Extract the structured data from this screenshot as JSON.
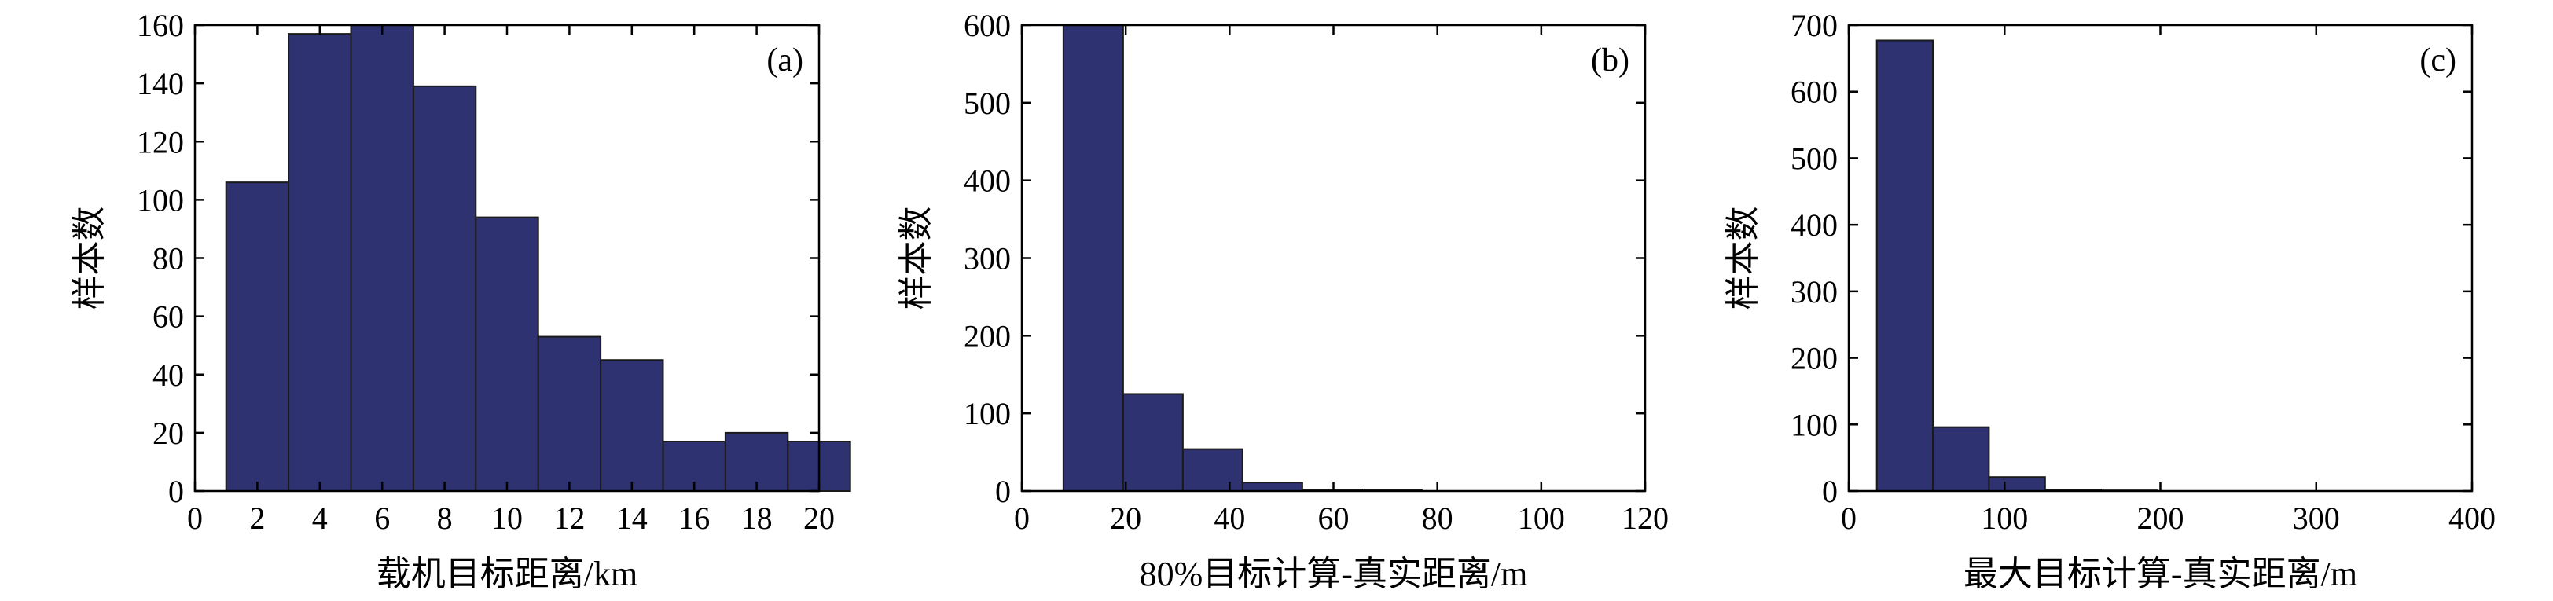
{
  "colors": {
    "bar_fill": "#2e3270",
    "bar_edge": "#1a1a1a",
    "frame": "#000000"
  },
  "chart_data": [
    {
      "type": "bar",
      "panel_label": "(a)",
      "xlabel": "载机目标距离/km",
      "ylabel": "样本数",
      "xlim": [
        0,
        20
      ],
      "ylim": [
        0,
        160
      ],
      "xticks": [
        0,
        2,
        4,
        6,
        8,
        10,
        12,
        14,
        16,
        18,
        20
      ],
      "yticks": [
        0,
        20,
        40,
        60,
        80,
        100,
        120,
        140,
        160
      ],
      "bin_edges": [
        1,
        3,
        5,
        7,
        9,
        11,
        13,
        15,
        17,
        19,
        21
      ],
      "values": [
        106,
        157,
        160,
        139,
        94,
        53,
        45,
        17,
        20,
        17
      ]
    },
    {
      "type": "bar",
      "panel_label": "(b)",
      "xlabel": "80%目标计算-真实距离/m",
      "ylabel": "样本数",
      "xlim": [
        0,
        120
      ],
      "ylim": [
        0,
        600
      ],
      "xticks": [
        0,
        20,
        40,
        60,
        80,
        100,
        120
      ],
      "yticks": [
        0,
        100,
        200,
        300,
        400,
        500,
        600
      ],
      "bin_edges": [
        8,
        19.5,
        31,
        42.5,
        54,
        65.5,
        77
      ],
      "values": [
        600,
        125,
        54,
        11,
        2,
        1
      ]
    },
    {
      "type": "bar",
      "panel_label": "(c)",
      "xlabel": "最大目标计算-真实距离/m",
      "ylabel": "样本数",
      "xlim": [
        0,
        400
      ],
      "ylim": [
        0,
        700
      ],
      "xticks": [
        0,
        100,
        200,
        300,
        400
      ],
      "yticks": [
        0,
        100,
        200,
        300,
        400,
        500,
        600,
        700
      ],
      "bin_edges": [
        18,
        54,
        90,
        126,
        162,
        198
      ],
      "values": [
        677,
        96,
        21,
        2,
        1
      ]
    }
  ]
}
